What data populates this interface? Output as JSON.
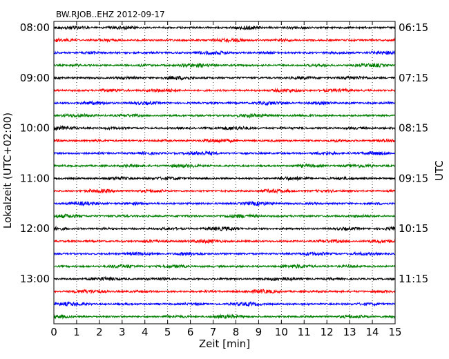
{
  "chart_data": {
    "type": "line",
    "title": "BW.RJOB..EHZ 2012-09-17",
    "xlabel": "Zeit  [min]",
    "ylabel_left": "Lokalzeit (UTC+02:00)",
    "ylabel_right": "UTC",
    "xlim": [
      0,
      15
    ],
    "x_ticks": [
      "0",
      "1",
      "2",
      "3",
      "4",
      "5",
      "6",
      "7",
      "8",
      "9",
      "10",
      "11",
      "12",
      "13",
      "14",
      "15"
    ],
    "y_ticks_left": [
      "08:00",
      "09:00",
      "10:00",
      "11:00",
      "12:00",
      "13:00"
    ],
    "y_ticks_right": [
      "06:15",
      "07:15",
      "08:15",
      "09:15",
      "10:15",
      "11:15"
    ],
    "traces_per_hour": 4,
    "trace_count": 24,
    "trace_colors": [
      "#000000",
      "#ff0000",
      "#0000ff",
      "#008000"
    ],
    "grid": "vertical-dotted",
    "series": [
      {
        "type": "seismogram",
        "values": "noise waveform, one trace per 15 minutes"
      }
    ]
  }
}
